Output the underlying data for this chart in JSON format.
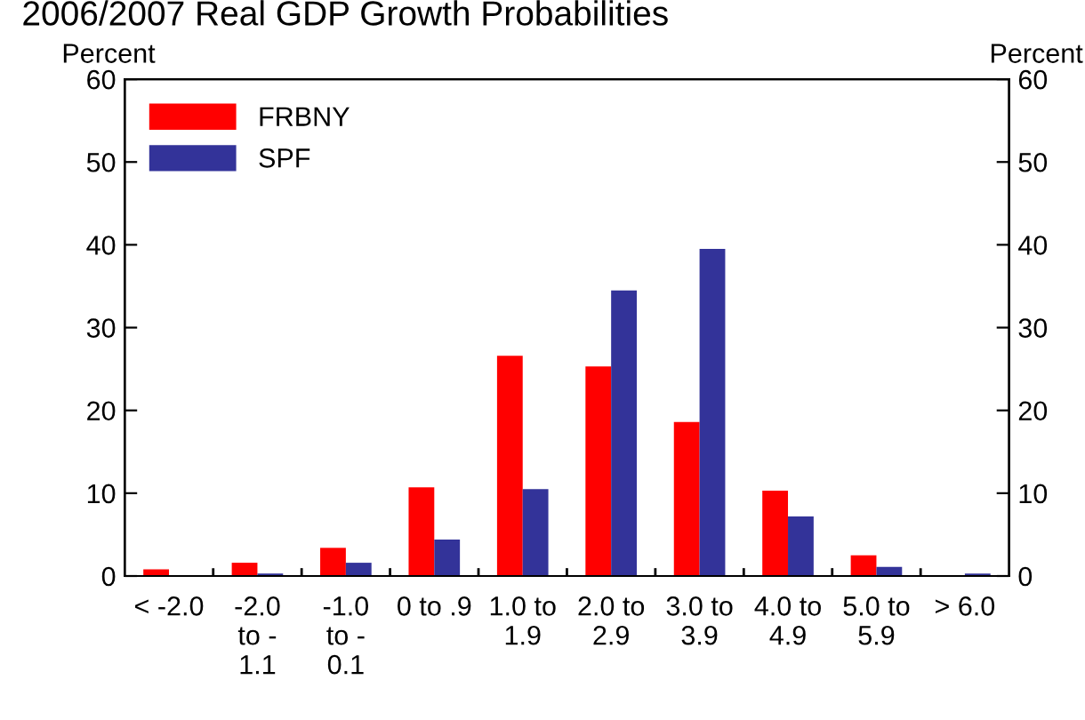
{
  "chart_data": {
    "type": "bar",
    "title": "2006/2007 Real GDP Growth Probabilities",
    "ylabel": "Percent",
    "y2label": "Percent",
    "categories": [
      "< -2.0",
      "-2.0\nto -\n1.1",
      "-1.0\nto -\n0.1",
      "0 to .9",
      "1.0 to\n1.9",
      "2.0 to\n2.9",
      "3.0 to\n3.9",
      "4.0 to\n4.9",
      "5.0 to\n5.9",
      "> 6.0"
    ],
    "series": [
      {
        "name": "FRBNY",
        "color": "#ff0000",
        "values": [
          0.8,
          1.6,
          3.4,
          10.7,
          26.6,
          25.3,
          18.6,
          10.3,
          2.5,
          0
        ]
      },
      {
        "name": "SPF",
        "color": "#333399",
        "values": [
          0,
          0.3,
          1.6,
          4.4,
          10.5,
          34.5,
          39.5,
          7.2,
          1.1,
          0.3
        ]
      }
    ],
    "ylim": [
      0,
      60
    ],
    "yticks": [
      0,
      10,
      20,
      30,
      40,
      50,
      60
    ],
    "y2lim": [
      0,
      60
    ],
    "y2ticks": [
      0,
      10,
      20,
      30,
      40,
      50,
      60
    ],
    "legend": "top left",
    "grid": false
  }
}
